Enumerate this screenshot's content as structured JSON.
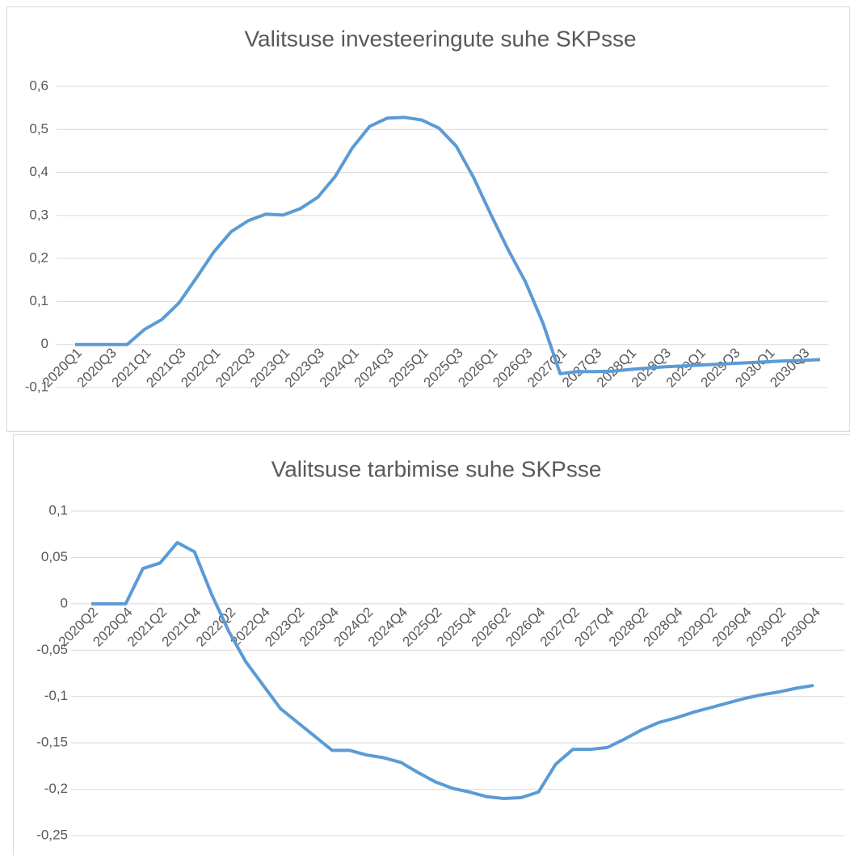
{
  "chart_data": [
    {
      "type": "line",
      "title": "Valitsuse investeeringute suhe SKPsse",
      "categories": [
        "2020Q1",
        null,
        "2020Q3",
        null,
        "2021Q1",
        null,
        "2021Q3",
        null,
        "2022Q1",
        null,
        "2022Q3",
        null,
        "2023Q1",
        null,
        "2023Q3",
        null,
        "2024Q1",
        null,
        "2024Q3",
        null,
        "2025Q1",
        null,
        "2025Q3",
        null,
        "2026Q1",
        null,
        "2026Q3",
        null,
        "2027Q1",
        null,
        "2027Q3",
        null,
        "2028Q1",
        null,
        "2028Q3",
        null,
        "2029Q1",
        null,
        "2029Q3",
        null,
        "2030Q1",
        null,
        "2030Q3",
        null
      ],
      "series": [
        {
          "color": "#5b9bd5",
          "values": [
            0,
            0,
            0,
            0,
            0.035,
            0.058,
            0.097,
            0.155,
            0.215,
            0.262,
            0.288,
            0.303,
            0.301,
            0.316,
            0.342,
            0.39,
            0.457,
            0.507,
            0.526,
            0.528,
            0.522,
            0.503,
            0.461,
            0.388,
            0.302,
            0.22,
            0.145,
            0.05,
            -0.068,
            -0.063,
            -0.063,
            -0.062,
            -0.058,
            -0.055,
            -0.052,
            -0.05,
            -0.048,
            -0.046,
            -0.044,
            -0.042,
            -0.04,
            -0.038,
            -0.037,
            -0.035
          ]
        }
      ],
      "ylim": [
        -0.1,
        0.6
      ],
      "yticks": [
        {
          "value": -0.1,
          "label": "-0,1"
        },
        0,
        {
          "value": 0.1,
          "label": "0,1"
        },
        {
          "value": 0.2,
          "label": "0,2"
        },
        {
          "value": 0.3,
          "label": "0,3"
        },
        {
          "value": 0.4,
          "label": "0,4"
        },
        {
          "value": 0.5,
          "label": "0,5"
        },
        {
          "value": 0.6,
          "label": "0,6"
        }
      ],
      "grid": true
    },
    {
      "type": "line",
      "title": "Valitsuse tarbimise suhe SKPsse",
      "categories": [
        "2020Q2",
        null,
        "2020Q4",
        null,
        "2021Q2",
        null,
        "2021Q4",
        null,
        "2022Q2",
        null,
        "2022Q4",
        null,
        "2023Q2",
        null,
        "2023Q4",
        null,
        "2024Q2",
        null,
        "2024Q4",
        null,
        "2025Q2",
        null,
        "2025Q4",
        null,
        "2026Q2",
        null,
        "2026Q4",
        null,
        "2027Q2",
        null,
        "2027Q4",
        null,
        "2028Q2",
        null,
        "2028Q4",
        null,
        "2029Q2",
        null,
        "2029Q4",
        null,
        "2030Q2",
        null,
        "2030Q4"
      ],
      "series": [
        {
          "color": "#5b9bd5",
          "values": [
            0,
            0,
            0,
            0.038,
            0.044,
            0.066,
            0.056,
            0.01,
            -0.03,
            -0.063,
            -0.088,
            -0.113,
            -0.128,
            -0.143,
            -0.158,
            -0.158,
            -0.163,
            -0.166,
            -0.171,
            -0.182,
            -0.192,
            -0.199,
            -0.203,
            -0.208,
            -0.21,
            -0.209,
            -0.203,
            -0.173,
            -0.157,
            -0.157,
            -0.155,
            -0.146,
            -0.136,
            -0.128,
            -0.123,
            -0.117,
            -0.112,
            -0.107,
            -0.102,
            -0.098,
            -0.095,
            -0.091,
            -0.088
          ]
        }
      ],
      "ylim": [
        -0.25,
        0.1
      ],
      "yticks": [
        {
          "value": -0.25,
          "label": "-0,25"
        },
        {
          "value": -0.2,
          "label": "-0,2"
        },
        {
          "value": -0.15,
          "label": "-0,15"
        },
        {
          "value": -0.1,
          "label": "-0,1"
        },
        {
          "value": -0.05,
          "label": "-0,05"
        },
        0,
        {
          "value": 0.05,
          "label": "0,05"
        },
        {
          "value": 0.1,
          "label": "0,1"
        }
      ],
      "grid": true
    }
  ]
}
